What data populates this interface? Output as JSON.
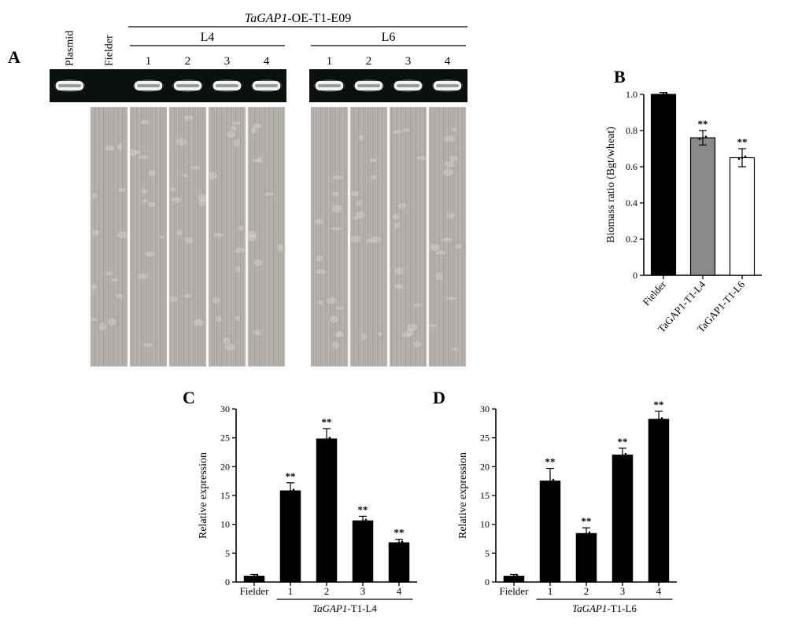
{
  "panel_labels": {
    "A": "A",
    "B": "B",
    "C": "C",
    "D": "D"
  },
  "panelA": {
    "header_title": "TaGAP1-OE-T1-E09",
    "col_labels": [
      "Plasmid",
      "Fielder"
    ],
    "groups": [
      {
        "name": "L4",
        "samples": [
          "1",
          "2",
          "3",
          "4"
        ]
      },
      {
        "name": "L6",
        "samples": [
          "1",
          "2",
          "3",
          "4"
        ]
      }
    ],
    "gel_bg": "#0b0f0e",
    "band_color": "#f2f4f2",
    "leaf_bg": "#b6b2ad",
    "leaf_stripe": "#9f9b95"
  },
  "panelB": {
    "ylabel": "Biomass ratio (Bgt/wheat)",
    "ylim": [
      0,
      1.0
    ],
    "ytick_step": 0.2,
    "yticks": [
      "0",
      "0.2",
      "0.4",
      "0.6",
      "0.8",
      "1.0"
    ],
    "categories": [
      "Fielder",
      "TaGAP1-T1-L4",
      "TaGAP1-T1-L6"
    ],
    "values": [
      1.0,
      0.76,
      0.65
    ],
    "errors": [
      0.01,
      0.04,
      0.05
    ],
    "sig": [
      "",
      "**",
      "**"
    ],
    "bar_colors": [
      "#000000",
      "#8a8a8a",
      "#ffffff"
    ],
    "bar_stroke": "#000000",
    "axis_color": "#000000",
    "label_fontsize": 14,
    "tick_fontsize": 12,
    "bar_width": 0.62
  },
  "panelC": {
    "ylabel": "Relative expression",
    "ylim": [
      0,
      30
    ],
    "ytick_step": 5,
    "yticks": [
      "0",
      "5",
      "10",
      "15",
      "20",
      "25",
      "30"
    ],
    "categories": [
      "Fielder",
      "1",
      "2",
      "3",
      "4"
    ],
    "group_underline_label": "TaGAP1-T1-L4",
    "values": [
      1.0,
      15.8,
      24.8,
      10.6,
      6.8
    ],
    "errors": [
      0.3,
      1.4,
      1.8,
      0.8,
      0.6
    ],
    "sig": [
      "",
      "**",
      "**",
      "**",
      "**"
    ],
    "bar_color": "#000000",
    "bar_stroke": "#000000",
    "axis_color": "#000000",
    "label_fontsize": 14,
    "tick_fontsize": 12,
    "bar_width": 0.55
  },
  "panelD": {
    "ylabel": "Relative expression",
    "ylim": [
      0,
      30
    ],
    "ytick_step": 5,
    "yticks": [
      "0",
      "5",
      "10",
      "15",
      "20",
      "25",
      "30"
    ],
    "categories": [
      "Fielder",
      "1",
      "2",
      "3",
      "4"
    ],
    "group_underline_label": "TaGAP1-T1-L6",
    "values": [
      1.0,
      17.5,
      8.4,
      22.0,
      28.2
    ],
    "errors": [
      0.3,
      2.2,
      1.0,
      1.2,
      1.4
    ],
    "sig": [
      "",
      "**",
      "**",
      "**",
      "**"
    ],
    "bar_color": "#000000",
    "bar_stroke": "#000000",
    "axis_color": "#000000",
    "label_fontsize": 14,
    "tick_fontsize": 12,
    "bar_width": 0.55
  }
}
